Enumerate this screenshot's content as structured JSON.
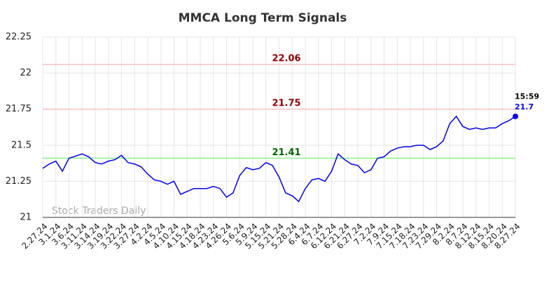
{
  "chart_data": {
    "type": "line",
    "title": "MMCA Long Term Signals",
    "categories": [
      "2.27.24",
      null,
      "3.1.24",
      null,
      "3.6.24",
      null,
      "3.11.24",
      null,
      "3.14.24",
      null,
      "3.19.24",
      null,
      "3.22.24",
      null,
      "3.27.24",
      null,
      "4.2.24",
      null,
      "4.5.24",
      null,
      "4.10.24",
      null,
      "4.15.24",
      null,
      "4.18.24",
      null,
      "4.23.24",
      null,
      "4.26.24",
      null,
      "5.6.24",
      null,
      "5.9.24",
      null,
      "5.15.24",
      null,
      "5.21.24",
      null,
      "5.28.24",
      null,
      "6.4.24",
      null,
      "6.7.24",
      null,
      "6.12.24",
      null,
      "6.21.24",
      null,
      "6.27.24",
      null,
      "7.2.24",
      null,
      "7.9.24",
      null,
      "7.15.24",
      null,
      "7.18.24",
      null,
      "7.23.24",
      null,
      "7.29.24",
      null,
      "8.2.24",
      null,
      "8.7.24",
      null,
      "8.12.24",
      null,
      "8.15.24",
      null,
      "8.20.24",
      null,
      "8.27.24"
    ],
    "series": [
      {
        "color": "#0000ee",
        "values": [
          21.34,
          21.37,
          21.39,
          21.32,
          21.41,
          21.425,
          21.44,
          21.42,
          21.38,
          21.37,
          21.39,
          21.4,
          21.43,
          21.38,
          21.37,
          21.35,
          21.3,
          21.26,
          21.25,
          21.23,
          21.25,
          21.16,
          21.18,
          21.2,
          21.2,
          21.2,
          21.215,
          21.2,
          21.14,
          21.17,
          21.29,
          21.345,
          21.33,
          21.34,
          21.38,
          21.36,
          21.28,
          21.17,
          21.15,
          21.11,
          21.2,
          21.26,
          21.27,
          21.25,
          21.32,
          21.44,
          21.4,
          21.37,
          21.36,
          21.31,
          21.33,
          21.41,
          21.42,
          21.46,
          21.48,
          21.49,
          21.49,
          21.5,
          21.5,
          21.47,
          21.49,
          21.53,
          21.65,
          21.7,
          21.63,
          21.61,
          21.62,
          21.61,
          21.62,
          21.62,
          21.65,
          21.67,
          21.7
        ]
      }
    ],
    "ylim": [
      21,
      22.25
    ],
    "yticks": [
      21,
      21.25,
      21.5,
      21.75,
      22,
      22.25
    ],
    "grid": true,
    "hlines": [
      {
        "value": 22.06,
        "color": "#ffc0c0",
        "label_color": "#8b0000"
      },
      {
        "value": 21.75,
        "color": "#ffc0c0",
        "label_color": "#8b0000"
      },
      {
        "value": 21.41,
        "color": "#90ee90",
        "label_color": "#006400"
      }
    ],
    "last_time": "15:59",
    "watermark": "Stock Traders Daily"
  }
}
